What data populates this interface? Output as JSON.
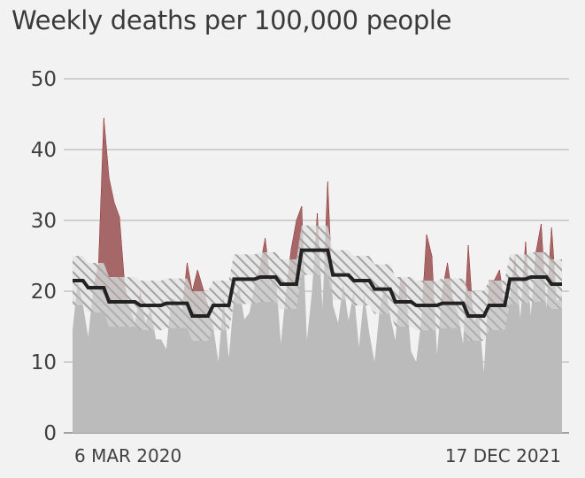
{
  "title": "Weekly deaths per 100,000 people",
  "chart_data": {
    "type": "area",
    "title": "Weekly deaths per 100,000 people",
    "xlabel": "",
    "ylabel": "",
    "ylim": [
      0,
      50
    ],
    "y_ticks": [
      0,
      10,
      20,
      30,
      40,
      50
    ],
    "x_tick_labels": [
      "6 MAR 2020",
      "17 DEC 2021"
    ],
    "grid": true,
    "colors": {
      "weekly_deaths": "#bbbbbb",
      "excess_deaths": "#8b0000",
      "expected_average": "#222222",
      "expected_range_hatch": "#999999",
      "background": "#f2f2f2",
      "gridline": "#bdbdbd"
    },
    "series": [
      {
        "values": [
          14.5,
          21.5,
          18.0,
          13.5,
          20.5,
          24.0,
          44.5,
          36.0,
          32.5,
          30.5,
          21.0,
          17.5,
          15.5,
          20.0,
          15.5,
          17.5,
          13.2,
          13.2,
          11.8,
          19.0,
          18.5,
          17.0,
          24.0,
          20.0,
          23.0,
          20.5,
          18.0,
          15.0,
          10.0,
          19.0,
          10.5,
          19.0,
          20.5,
          16.0,
          17.0,
          21.0,
          23.5,
          27.5,
          21.0,
          22.5,
          12.5,
          20.0,
          26.0,
          30.0,
          32.0,
          13.0,
          20.0,
          31.0,
          17.5,
          35.5,
          18.0,
          15.5,
          21.0,
          15.8,
          20.0,
          12.0,
          19.5,
          14.0,
          10.0,
          17.5,
          21.0,
          16.5,
          13.0,
          22.0,
          20.5,
          11.5,
          10.0,
          16.0,
          28.0,
          25.0,
          11.0,
          20.0,
          24.0,
          19.0,
          17.0,
          12.5,
          26.5,
          15.5,
          17.0,
          8.5,
          21.5,
          21.5,
          23.0,
          17.8,
          19.0,
          25.0,
          16.0,
          27.0,
          16.5,
          25.5,
          29.5,
          17.5,
          29.0,
          18.5,
          19.5
        ]
      },
      {
        "values": [
          21.5,
          21.5,
          21.5,
          20.5,
          20.5,
          20.5,
          20.5,
          18.5,
          18.5,
          18.5,
          18.5,
          18.5,
          18.5,
          18.0,
          18.0,
          18.0,
          18.0,
          18.0,
          18.3,
          18.3,
          18.3,
          18.3,
          18.3,
          16.5,
          16.5,
          16.5,
          16.5,
          18.0,
          18.0,
          18.0,
          18.0,
          21.7,
          21.7,
          21.7,
          21.7,
          21.7,
          22.0,
          22.0,
          22.0,
          22.0,
          21.0,
          21.0,
          21.0,
          21.0,
          25.8,
          25.8,
          25.8,
          25.8,
          25.8,
          25.8,
          22.3,
          22.3,
          22.3,
          22.3,
          21.5,
          21.5,
          21.5,
          21.5,
          20.3,
          20.3,
          20.3,
          20.3,
          18.5,
          18.5,
          18.5,
          18.5,
          18.0,
          18.0,
          18.0,
          18.0,
          18.0,
          18.3,
          18.3,
          18.3,
          18.3,
          18.3,
          16.5,
          16.5,
          16.5,
          16.5,
          18.0,
          18.0,
          18.0,
          18.0,
          21.7,
          21.7,
          21.7,
          21.7,
          22.0,
          22.0,
          22.0,
          22.0,
          21.0,
          21.0,
          21.0
        ]
      }
    ],
    "expected_range": {
      "low_offset": 3.5,
      "high_offset": 3.5
    }
  }
}
